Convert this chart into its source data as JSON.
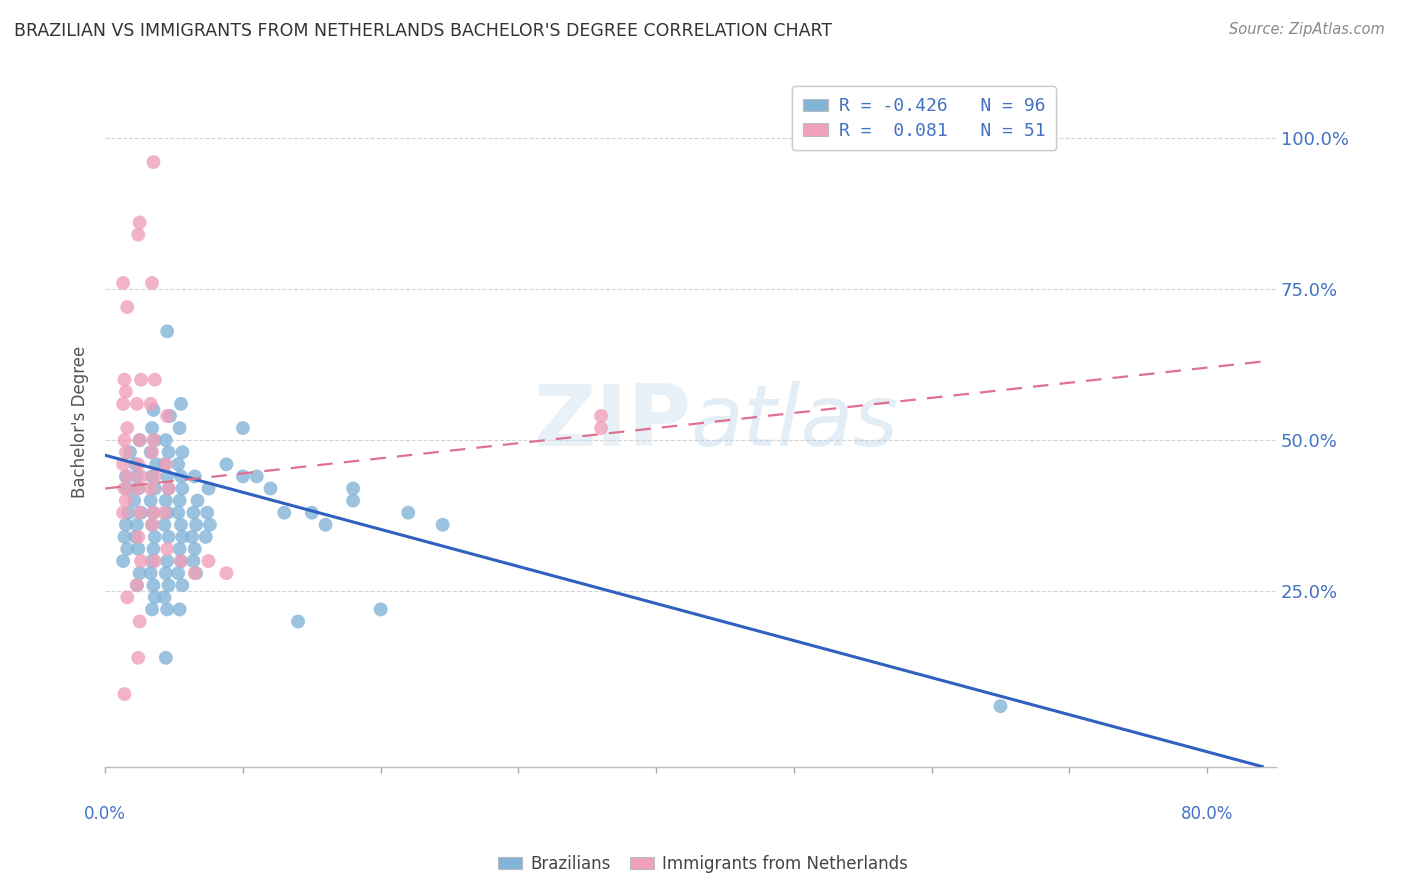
{
  "title": "BRAZILIAN VS IMMIGRANTS FROM NETHERLANDS BACHELOR'S DEGREE CORRELATION CHART",
  "source": "Source: ZipAtlas.com",
  "ylabel": "Bachelor's Degree",
  "ytick_labels": [
    "100.0%",
    "75.0%",
    "50.0%",
    "25.0%"
  ],
  "ytick_positions": [
    1.0,
    0.75,
    0.5,
    0.25
  ],
  "xlim": [
    0.0,
    0.85
  ],
  "ylim": [
    -0.04,
    1.1
  ],
  "watermark": "ZIPatlas",
  "legend_entries": [
    {
      "label": "R = -0.426   N = 96",
      "color": "#aac8e8"
    },
    {
      "label": "R =  0.081   N = 51",
      "color": "#f4b0c4"
    }
  ],
  "legend_bottom": [
    "Brazilians",
    "Immigrants from Netherlands"
  ],
  "blue_color": "#82b4d8",
  "pink_color": "#f0a0b8",
  "blue_line_color": "#3060c0",
  "pink_line_color": "#e07090",
  "background_color": "#ffffff",
  "grid_color": "#d0d0d0",
  "axis_label_color": "#4472c4",
  "blue_trend": [
    0.0,
    0.84,
    0.475,
    -0.04
  ],
  "pink_trend": [
    0.0,
    0.84,
    0.42,
    0.63
  ],
  "blue_scatter": [
    [
      0.015,
      0.44
    ],
    [
      0.018,
      0.48
    ],
    [
      0.016,
      0.42
    ],
    [
      0.017,
      0.38
    ],
    [
      0.015,
      0.36
    ],
    [
      0.014,
      0.34
    ],
    [
      0.016,
      0.32
    ],
    [
      0.013,
      0.3
    ],
    [
      0.025,
      0.5
    ],
    [
      0.022,
      0.46
    ],
    [
      0.023,
      0.44
    ],
    [
      0.024,
      0.42
    ],
    [
      0.021,
      0.4
    ],
    [
      0.026,
      0.38
    ],
    [
      0.023,
      0.36
    ],
    [
      0.022,
      0.34
    ],
    [
      0.024,
      0.32
    ],
    [
      0.025,
      0.28
    ],
    [
      0.023,
      0.26
    ],
    [
      0.035,
      0.55
    ],
    [
      0.034,
      0.52
    ],
    [
      0.036,
      0.5
    ],
    [
      0.033,
      0.48
    ],
    [
      0.037,
      0.46
    ],
    [
      0.034,
      0.44
    ],
    [
      0.036,
      0.42
    ],
    [
      0.033,
      0.4
    ],
    [
      0.035,
      0.38
    ],
    [
      0.034,
      0.36
    ],
    [
      0.036,
      0.34
    ],
    [
      0.035,
      0.32
    ],
    [
      0.034,
      0.3
    ],
    [
      0.033,
      0.28
    ],
    [
      0.035,
      0.26
    ],
    [
      0.036,
      0.24
    ],
    [
      0.034,
      0.22
    ],
    [
      0.045,
      0.68
    ],
    [
      0.047,
      0.54
    ],
    [
      0.044,
      0.5
    ],
    [
      0.046,
      0.48
    ],
    [
      0.043,
      0.46
    ],
    [
      0.045,
      0.44
    ],
    [
      0.046,
      0.42
    ],
    [
      0.044,
      0.4
    ],
    [
      0.045,
      0.38
    ],
    [
      0.043,
      0.36
    ],
    [
      0.046,
      0.34
    ],
    [
      0.045,
      0.3
    ],
    [
      0.044,
      0.28
    ],
    [
      0.046,
      0.26
    ],
    [
      0.043,
      0.24
    ],
    [
      0.045,
      0.22
    ],
    [
      0.044,
      0.14
    ],
    [
      0.055,
      0.56
    ],
    [
      0.054,
      0.52
    ],
    [
      0.056,
      0.48
    ],
    [
      0.053,
      0.46
    ],
    [
      0.055,
      0.44
    ],
    [
      0.056,
      0.42
    ],
    [
      0.054,
      0.4
    ],
    [
      0.053,
      0.38
    ],
    [
      0.055,
      0.36
    ],
    [
      0.056,
      0.34
    ],
    [
      0.054,
      0.32
    ],
    [
      0.055,
      0.3
    ],
    [
      0.053,
      0.28
    ],
    [
      0.056,
      0.26
    ],
    [
      0.054,
      0.22
    ],
    [
      0.065,
      0.44
    ],
    [
      0.067,
      0.4
    ],
    [
      0.064,
      0.38
    ],
    [
      0.066,
      0.36
    ],
    [
      0.063,
      0.34
    ],
    [
      0.065,
      0.32
    ],
    [
      0.064,
      0.3
    ],
    [
      0.066,
      0.28
    ],
    [
      0.075,
      0.42
    ],
    [
      0.074,
      0.38
    ],
    [
      0.076,
      0.36
    ],
    [
      0.073,
      0.34
    ],
    [
      0.088,
      0.46
    ],
    [
      0.1,
      0.52
    ],
    [
      0.1,
      0.44
    ],
    [
      0.11,
      0.44
    ],
    [
      0.12,
      0.42
    ],
    [
      0.13,
      0.38
    ],
    [
      0.14,
      0.2
    ],
    [
      0.15,
      0.38
    ],
    [
      0.16,
      0.36
    ],
    [
      0.18,
      0.42
    ],
    [
      0.18,
      0.4
    ],
    [
      0.2,
      0.22
    ],
    [
      0.22,
      0.38
    ],
    [
      0.245,
      0.36
    ],
    [
      0.65,
      0.06
    ]
  ],
  "pink_scatter": [
    [
      0.013,
      0.76
    ],
    [
      0.016,
      0.72
    ],
    [
      0.014,
      0.6
    ],
    [
      0.015,
      0.58
    ],
    [
      0.013,
      0.56
    ],
    [
      0.016,
      0.52
    ],
    [
      0.014,
      0.5
    ],
    [
      0.015,
      0.48
    ],
    [
      0.013,
      0.46
    ],
    [
      0.016,
      0.44
    ],
    [
      0.014,
      0.42
    ],
    [
      0.015,
      0.4
    ],
    [
      0.013,
      0.38
    ],
    [
      0.016,
      0.24
    ],
    [
      0.014,
      0.08
    ],
    [
      0.025,
      0.86
    ],
    [
      0.024,
      0.84
    ],
    [
      0.026,
      0.6
    ],
    [
      0.023,
      0.56
    ],
    [
      0.025,
      0.5
    ],
    [
      0.024,
      0.46
    ],
    [
      0.026,
      0.44
    ],
    [
      0.023,
      0.42
    ],
    [
      0.025,
      0.38
    ],
    [
      0.024,
      0.34
    ],
    [
      0.026,
      0.3
    ],
    [
      0.023,
      0.26
    ],
    [
      0.025,
      0.2
    ],
    [
      0.024,
      0.14
    ],
    [
      0.035,
      0.96
    ],
    [
      0.034,
      0.76
    ],
    [
      0.036,
      0.6
    ],
    [
      0.033,
      0.56
    ],
    [
      0.035,
      0.5
    ],
    [
      0.034,
      0.48
    ],
    [
      0.036,
      0.44
    ],
    [
      0.033,
      0.42
    ],
    [
      0.035,
      0.38
    ],
    [
      0.034,
      0.36
    ],
    [
      0.036,
      0.3
    ],
    [
      0.045,
      0.54
    ],
    [
      0.044,
      0.46
    ],
    [
      0.046,
      0.42
    ],
    [
      0.043,
      0.38
    ],
    [
      0.045,
      0.32
    ],
    [
      0.055,
      0.3
    ],
    [
      0.065,
      0.28
    ],
    [
      0.075,
      0.3
    ],
    [
      0.088,
      0.28
    ],
    [
      0.36,
      0.54
    ],
    [
      0.36,
      0.52
    ]
  ]
}
